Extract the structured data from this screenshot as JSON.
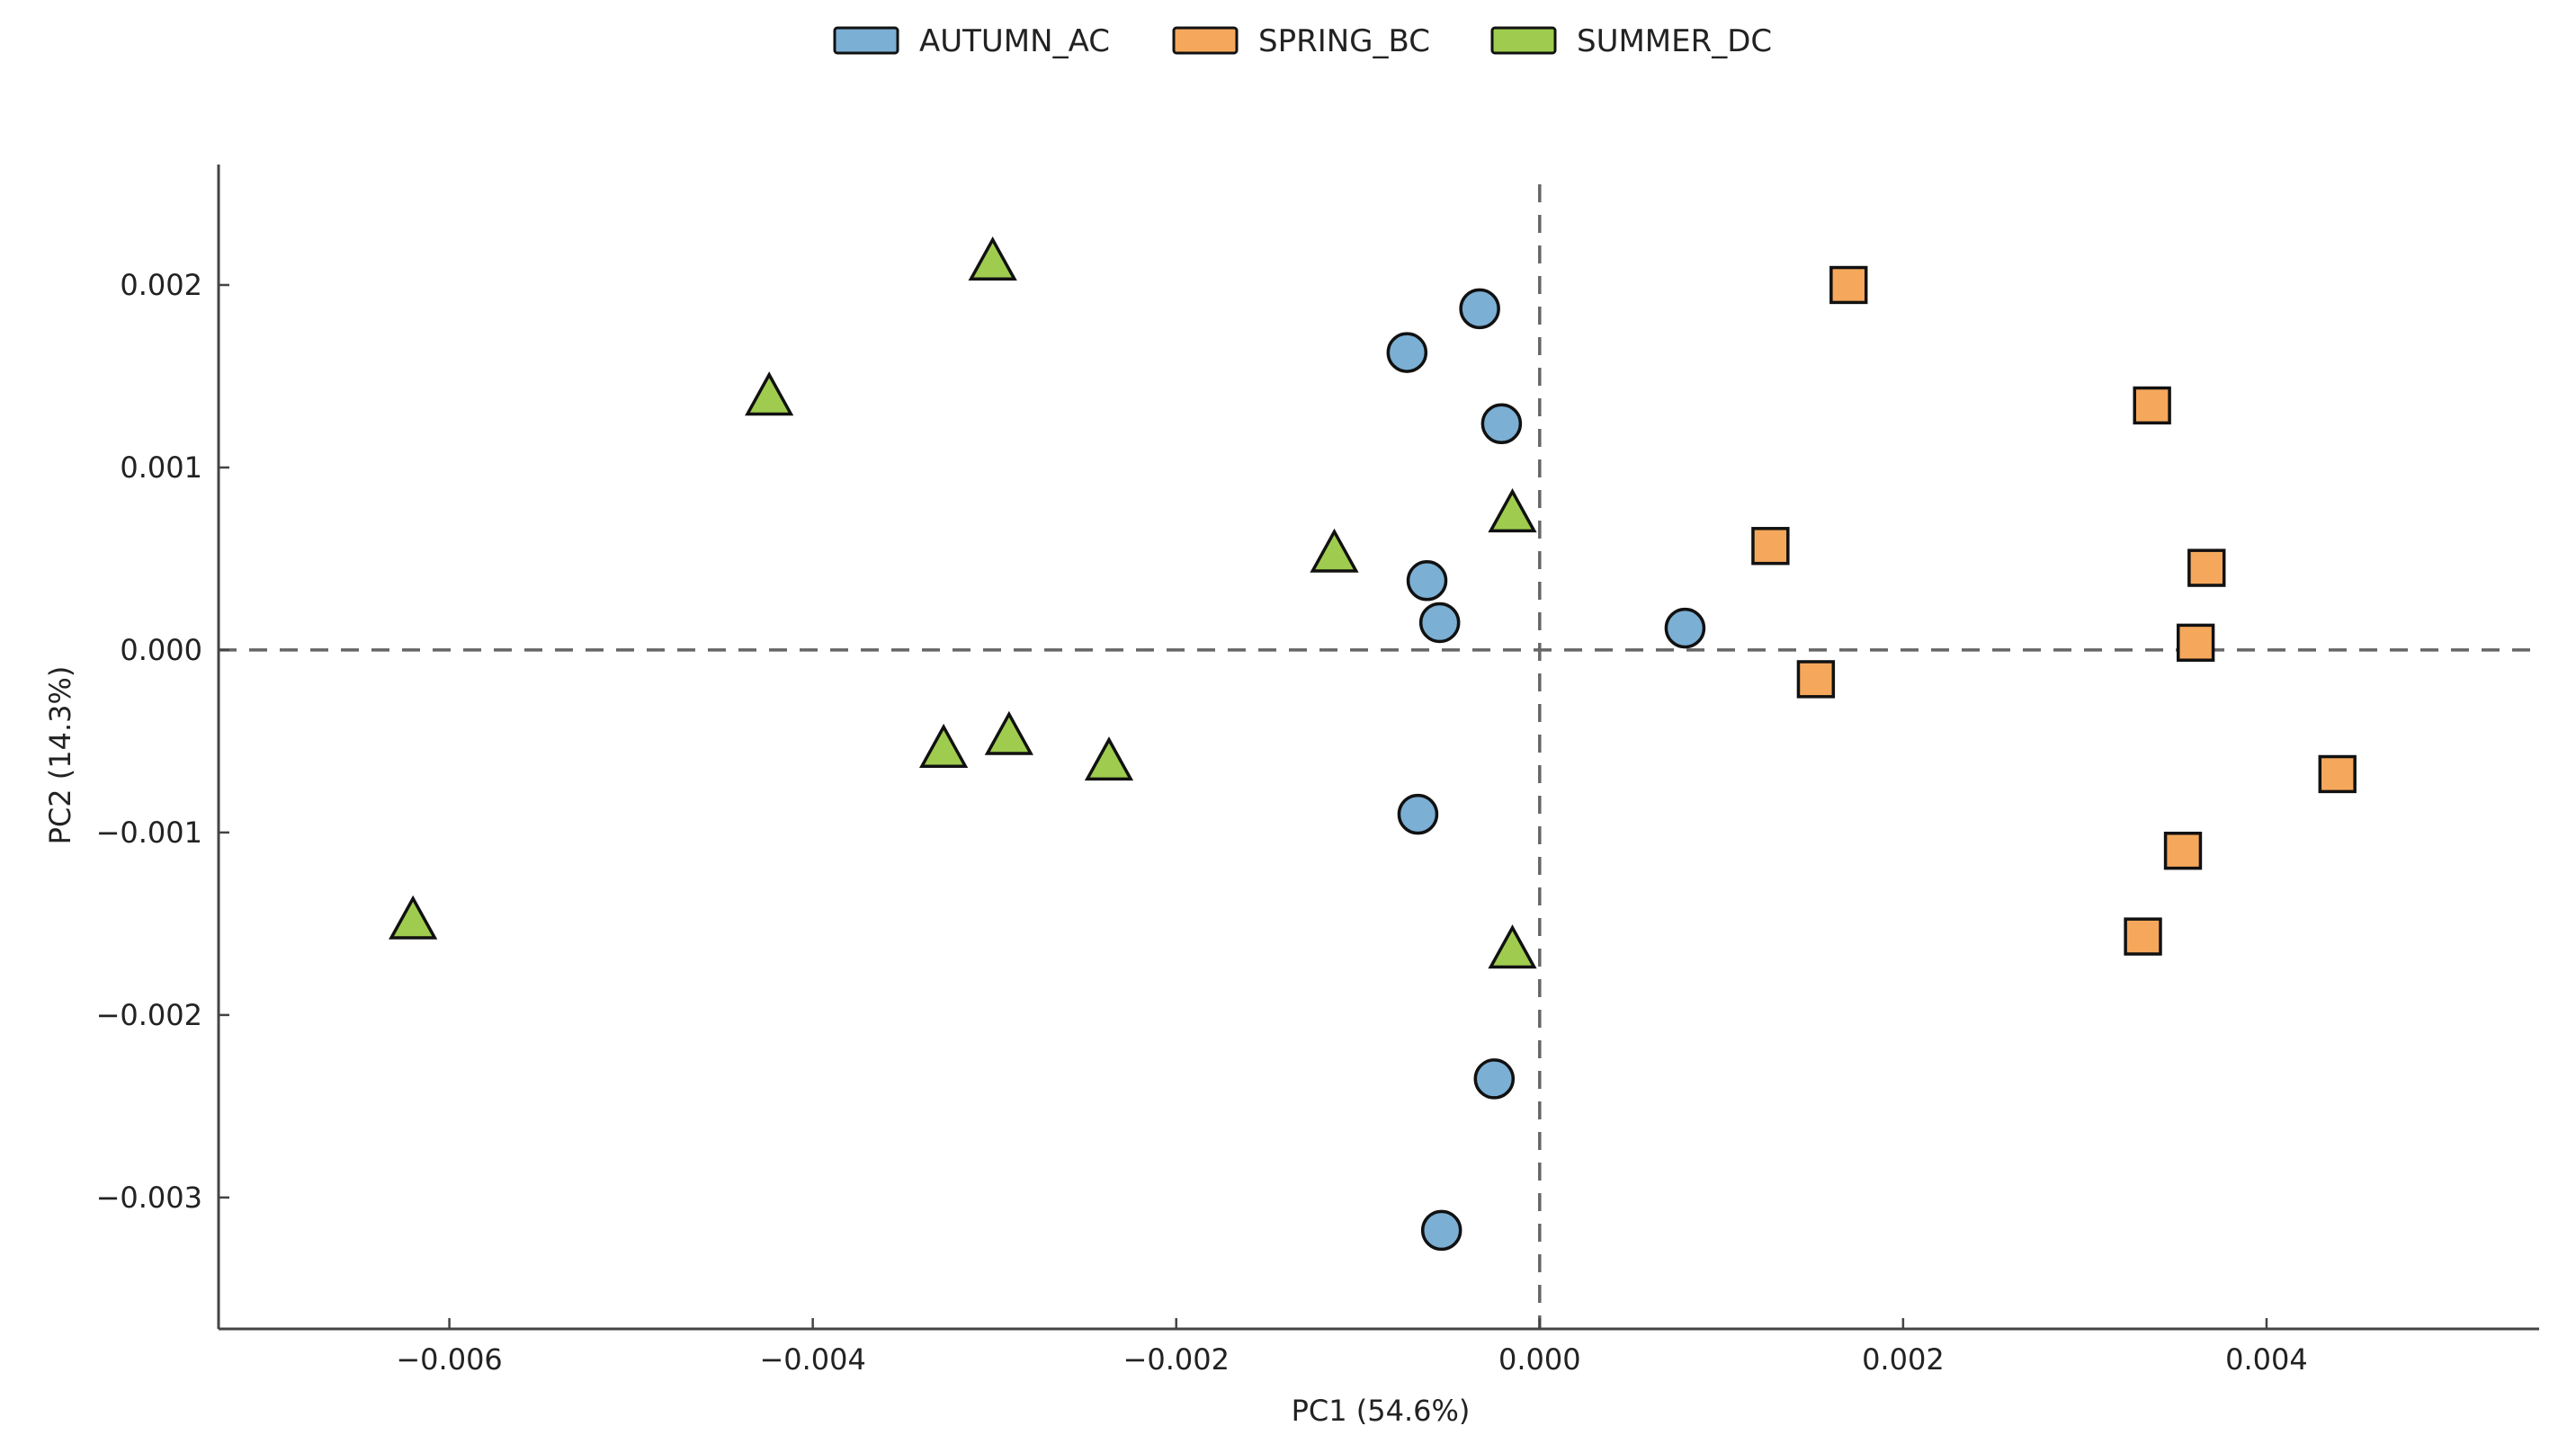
{
  "chart_data": {
    "type": "scatter",
    "title": "",
    "xlabel": "PC1 (54.6%)",
    "ylabel": "PC2 (14.3%)",
    "xlim": [
      -0.00727,
      0.0055
    ],
    "ylim": [
      -0.00372,
      0.00266
    ],
    "xticks": [
      -0.006,
      -0.004,
      -0.002,
      0.0,
      0.002,
      0.004
    ],
    "xtick_labels": [
      "−0.006",
      "−0.004",
      "−0.002",
      "0.000",
      "0.002",
      "0.004"
    ],
    "yticks": [
      0.002,
      0.001,
      0.0,
      -0.001,
      -0.002,
      -0.003
    ],
    "ytick_labels": [
      "0.002",
      "0.001",
      "0.000",
      "−0.001",
      "−0.002",
      "−0.003"
    ],
    "reference_lines": {
      "x": 0.0,
      "y": 0.0,
      "style": "dashed"
    },
    "grid": false,
    "legend_position": "top-center",
    "series": [
      {
        "name": "AUTUMN_AC",
        "marker": "circle",
        "color": "#7BAFD4",
        "x": [
          -0.00033,
          -0.00073,
          -0.00021,
          -0.00062,
          -0.00055,
          0.0008,
          -0.00067,
          -0.00025,
          -0.00054
        ],
        "y": [
          0.00187,
          0.00163,
          0.00124,
          0.00038,
          0.00015,
          0.00012,
          -0.0009,
          -0.00235,
          -0.00318
        ]
      },
      {
        "name": "SPRING_BC",
        "marker": "square",
        "color": "#F5A85C",
        "x": [
          0.0017,
          0.00337,
          0.00127,
          0.00367,
          0.00361,
          0.00152,
          0.00439,
          0.00354,
          0.00332
        ],
        "y": [
          0.002,
          0.00134,
          0.00057,
          0.00045,
          4e-05,
          -0.00016,
          -0.00068,
          -0.0011,
          -0.00157
        ]
      },
      {
        "name": "SUMMER_DC",
        "marker": "triangle",
        "color": "#9FCC4E",
        "x": [
          -0.00301,
          -0.00424,
          -0.00015,
          -0.00113,
          -0.00292,
          -0.00328,
          -0.00237,
          -0.0062,
          -0.00015
        ],
        "y": [
          0.00212,
          0.00138,
          0.00074,
          0.00052,
          -0.00048,
          -0.00055,
          -0.00062,
          -0.00149,
          -0.00165
        ]
      }
    ]
  }
}
